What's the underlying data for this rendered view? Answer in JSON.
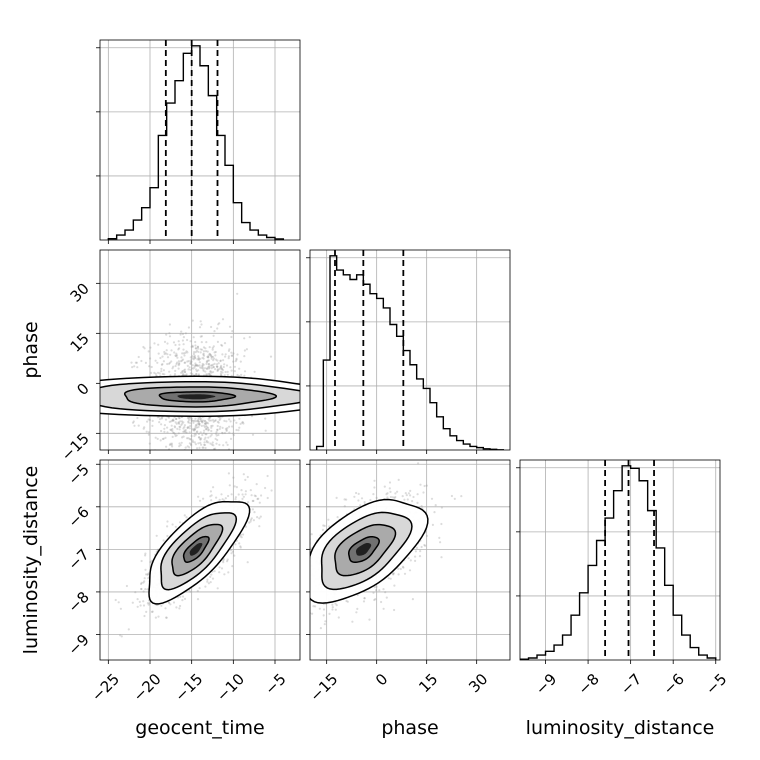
{
  "chart_data": {
    "type": "corner",
    "parameters": [
      "geocent_time",
      "phase",
      "luminosity_distance"
    ],
    "ranges": {
      "geocent_time": [
        -26,
        -2
      ],
      "phase": [
        -20,
        40
      ],
      "luminosity_distance": [
        -9.6,
        -4.9
      ]
    },
    "ticks": {
      "geocent_time": [
        -25,
        -20,
        -15,
        -10,
        -5
      ],
      "phase": [
        -15,
        0,
        15,
        30
      ],
      "luminosity_distance": [
        -9,
        -8,
        -7,
        -6,
        -5
      ]
    },
    "tick_labels": {
      "geocent_time": [
        "−25",
        "−20",
        "−15",
        "−10",
        "−5"
      ],
      "phase": [
        "−15",
        "0",
        "15",
        "30"
      ],
      "luminosity_distance": [
        "−9",
        "−8",
        "−7",
        "−6",
        "−5"
      ]
    },
    "quantiles": {
      "geocent_time": [
        -18.1,
        -15.0,
        -11.9
      ],
      "phase": [
        -12.5,
        -4.0,
        8.0
      ],
      "luminosity_distance": [
        -7.6,
        -7.05,
        -6.45
      ]
    },
    "histograms": {
      "geocent_time": {
        "edges": [
          -25,
          -24,
          -23,
          -22,
          -21,
          -20,
          -19,
          -18,
          -17,
          -16,
          -15,
          -14,
          -13,
          -12,
          -11,
          -10,
          -9,
          -8,
          -7,
          -6,
          -5,
          -4
        ],
        "counts": [
          0.5,
          2.0,
          4.0,
          8.0,
          13.0,
          21.0,
          42.0,
          55.0,
          64.0,
          75.0,
          78.0,
          70.0,
          58.0,
          42.0,
          30.0,
          15.0,
          7.0,
          4.0,
          2.0,
          1.0,
          0.4
        ]
      },
      "phase": {
        "edges": [
          -18,
          -16,
          -14,
          -12,
          -10,
          -8,
          -6,
          -4,
          -2,
          0,
          2,
          4,
          6,
          8,
          10,
          12,
          14,
          16,
          18,
          20,
          22,
          24,
          26,
          28,
          30,
          32,
          34,
          36,
          38
        ],
        "counts": [
          1.5,
          38.0,
          82.0,
          76.0,
          74.0,
          72.0,
          74.0,
          70.0,
          66.0,
          64.0,
          60.0,
          53.0,
          48.0,
          42.0,
          36.0,
          30.0,
          26.0,
          20.0,
          14.0,
          9.0,
          6.0,
          4.0,
          2.5,
          1.5,
          1.0,
          0.5,
          0.3,
          0.1
        ]
      },
      "luminosity_distance": {
        "edges": [
          -9.6,
          -9.4,
          -9.2,
          -9.0,
          -8.8,
          -8.6,
          -8.4,
          -8.2,
          -8.0,
          -7.8,
          -7.6,
          -7.4,
          -7.2,
          -7.0,
          -6.8,
          -6.6,
          -6.4,
          -6.2,
          -6.0,
          -5.8,
          -5.6,
          -5.4,
          -5.2,
          -5.0
        ],
        "counts": [
          0.3,
          0.8,
          2.0,
          3.5,
          6.0,
          10.0,
          18.0,
          27.0,
          38.0,
          48.0,
          57.0,
          68.0,
          78.0,
          77.0,
          72.0,
          60.0,
          45.0,
          30.0,
          18.0,
          10.0,
          5.0,
          2.0,
          0.8
        ]
      }
    },
    "pairs": [
      {
        "x": "geocent_time",
        "y": "phase",
        "center": [
          -14.5,
          -4.0
        ],
        "sigma": [
          3.0,
          9.0
        ],
        "rho": 0.0,
        "contour_levels": [
          0.5,
          1.0,
          1.5,
          2.0
        ]
      },
      {
        "x": "geocent_time",
        "y": "luminosity_distance",
        "center": [
          -14.5,
          -7.0
        ],
        "sigma": [
          3.0,
          0.6
        ],
        "rho": 0.72,
        "contour_levels": [
          0.5,
          1.0,
          1.5,
          2.0
        ]
      },
      {
        "x": "phase",
        "y": "luminosity_distance",
        "center": [
          -4.0,
          -7.0
        ],
        "sigma": [
          9.0,
          0.6
        ],
        "rho": 0.55,
        "contour_levels": [
          0.5,
          1.0,
          1.5,
          2.0
        ]
      }
    ],
    "grid": true,
    "line_color": "#000000",
    "scatter_color": "#9a9a9a",
    "title": ""
  }
}
